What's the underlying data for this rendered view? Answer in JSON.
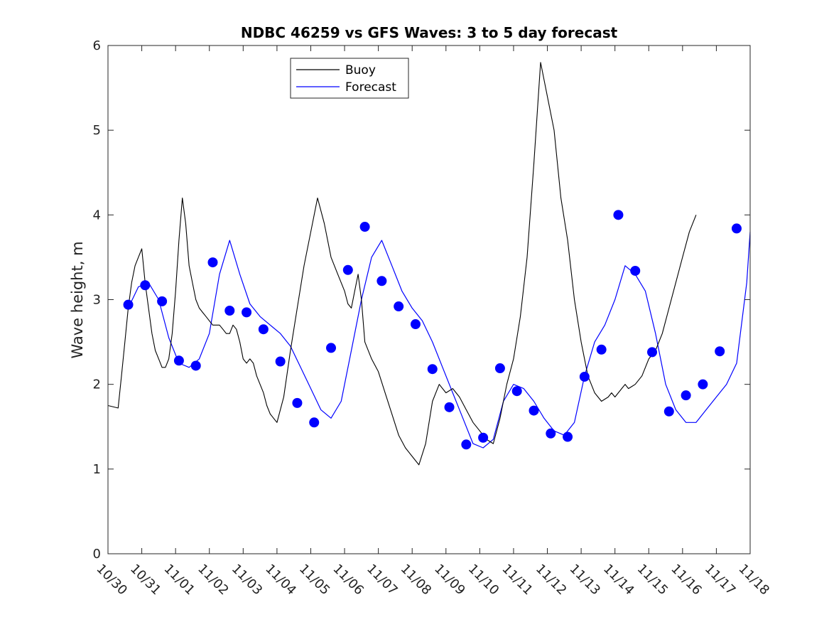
{
  "chart_data": {
    "type": "line",
    "title": "NDBC 46259 vs GFS Waves: 3 to 5 day forecast",
    "xlabel": "",
    "ylabel": "Wave height, m",
    "ylim": [
      0,
      6
    ],
    "yticks": [
      0,
      1,
      2,
      3,
      4,
      5,
      6
    ],
    "xlim": [
      0,
      19
    ],
    "x_tick_labels": [
      "10/30",
      "10/31",
      "11/01",
      "11/02",
      "11/03",
      "11/04",
      "11/05",
      "11/06",
      "11/07",
      "11/08",
      "11/09",
      "11/10",
      "11/11",
      "11/12",
      "11/13",
      "11/14",
      "11/15",
      "11/16",
      "11/17",
      "11/18"
    ],
    "x_units": "days since 10/30 00:00",
    "legend": {
      "position": "top-center",
      "entries": [
        {
          "name": "Buoy",
          "color": "#000000"
        },
        {
          "name": "Forecast",
          "color": "#0000ff"
        }
      ]
    },
    "grid": false,
    "buoy_series": {
      "name": "Buoy",
      "color": "#000000",
      "x": [
        0.0,
        0.3,
        0.4,
        0.5,
        0.6,
        0.7,
        0.8,
        0.9,
        1.0,
        1.1,
        1.2,
        1.3,
        1.4,
        1.5,
        1.6,
        1.7,
        1.8,
        1.9,
        2.0,
        2.1,
        2.2,
        2.3,
        2.4,
        2.5,
        2.6,
        2.7,
        2.8,
        2.9,
        3.0,
        3.1,
        3.2,
        3.3,
        3.4,
        3.5,
        3.6,
        3.7,
        3.8,
        3.9,
        4.0,
        4.1,
        4.2,
        4.3,
        4.4,
        4.5,
        4.6,
        4.7,
        4.8,
        4.9,
        5.0,
        5.2,
        5.4,
        5.6,
        5.8,
        6.0,
        6.2,
        6.4,
        6.6,
        6.8,
        7.0,
        7.1,
        7.2,
        7.3,
        7.4,
        7.5,
        7.6,
        7.8,
        8.0,
        8.2,
        8.4,
        8.6,
        8.8,
        9.0,
        9.2,
        9.4,
        9.6,
        9.8,
        10.0,
        10.2,
        10.4,
        10.6,
        10.8,
        11.0,
        11.2,
        11.4,
        11.6,
        11.8,
        12.0,
        12.2,
        12.4,
        12.6,
        12.8,
        13.0,
        13.2,
        13.4,
        13.6,
        13.8,
        14.0,
        14.2,
        14.4,
        14.6,
        14.8,
        14.9,
        15.0,
        15.1,
        15.2,
        15.3,
        15.4,
        15.6,
        15.8,
        16.0,
        16.2,
        16.4,
        16.6,
        16.8,
        17.0,
        17.2,
        17.4
      ],
      "values": [
        1.75,
        1.72,
        2.1,
        2.5,
        2.9,
        3.2,
        3.4,
        3.5,
        3.6,
        3.2,
        2.9,
        2.6,
        2.4,
        2.3,
        2.2,
        2.2,
        2.3,
        2.6,
        3.1,
        3.7,
        4.2,
        3.9,
        3.4,
        3.2,
        3.0,
        2.9,
        2.85,
        2.8,
        2.75,
        2.7,
        2.7,
        2.7,
        2.65,
        2.6,
        2.6,
        2.7,
        2.65,
        2.5,
        2.3,
        2.25,
        2.3,
        2.25,
        2.1,
        2.0,
        1.9,
        1.75,
        1.65,
        1.6,
        1.55,
        1.85,
        2.4,
        2.9,
        3.4,
        3.8,
        4.2,
        3.9,
        3.5,
        3.3,
        3.1,
        2.95,
        2.9,
        3.1,
        3.3,
        3.0,
        2.5,
        2.3,
        2.15,
        1.9,
        1.65,
        1.4,
        1.25,
        1.15,
        1.05,
        1.3,
        1.8,
        2.0,
        1.9,
        1.95,
        1.85,
        1.7,
        1.55,
        1.45,
        1.35,
        1.3,
        1.6,
        2.0,
        2.3,
        2.8,
        3.5,
        4.6,
        5.8,
        5.4,
        5.0,
        4.2,
        3.7,
        3.0,
        2.5,
        2.1,
        1.9,
        1.8,
        1.85,
        1.9,
        1.85,
        1.9,
        1.95,
        2.0,
        1.95,
        2.0,
        2.1,
        2.3,
        2.4,
        2.6,
        2.9,
        3.2,
        3.5,
        3.8,
        4.0
      ]
    },
    "forecast_series": [
      {
        "name": "Forecast",
        "color": "#0000ff",
        "x": [
          0.6,
          0.9,
          1.2,
          1.5,
          1.8,
          2.1,
          2.4,
          2.7,
          3.0,
          3.3,
          3.6,
          3.9,
          4.2,
          4.5,
          4.8,
          5.1,
          5.4,
          5.7,
          6.0,
          6.3,
          6.6,
          6.9,
          7.2,
          7.5,
          7.8,
          8.1,
          8.4,
          8.7,
          9.0,
          9.3,
          9.6,
          9.9,
          10.2,
          10.5,
          10.8,
          11.1,
          11.4,
          11.7,
          12.0,
          12.3,
          12.6,
          12.9,
          13.2,
          13.5,
          13.8,
          14.1,
          14.4,
          14.7,
          15.0,
          15.3,
          15.6,
          15.9,
          16.2,
          16.5,
          16.8,
          17.1,
          17.4,
          17.7,
          18.0,
          18.3,
          18.6,
          18.9,
          19.0
        ],
        "values": [
          2.9,
          3.15,
          3.2,
          3.0,
          2.55,
          2.25,
          2.2,
          2.3,
          2.6,
          3.3,
          3.7,
          3.3,
          2.95,
          2.8,
          2.7,
          2.6,
          2.45,
          2.2,
          1.95,
          1.7,
          1.6,
          1.8,
          2.4,
          3.0,
          3.5,
          3.7,
          3.4,
          3.1,
          2.9,
          2.75,
          2.5,
          2.2,
          1.9,
          1.6,
          1.3,
          1.25,
          1.35,
          1.8,
          2.0,
          1.95,
          1.8,
          1.6,
          1.45,
          1.4,
          1.55,
          2.1,
          2.5,
          2.7,
          3.0,
          3.4,
          3.3,
          3.1,
          2.6,
          2.0,
          1.7,
          1.55,
          1.55,
          1.7,
          1.85,
          2.0,
          2.25,
          3.2,
          3.8
        ]
      }
    ],
    "forecast_markers": {
      "name": "Forecast",
      "color": "#0000ff",
      "x": [
        0.6,
        1.1,
        1.6,
        2.1,
        2.6,
        3.1,
        3.6,
        4.1,
        4.6,
        5.1,
        5.6,
        6.1,
        6.6,
        7.1,
        7.6,
        8.1,
        8.6,
        9.1,
        9.6,
        10.1,
        10.6,
        11.1,
        11.6,
        12.1,
        12.6,
        13.1,
        13.6,
        14.1,
        14.6,
        15.1,
        15.6,
        16.1,
        16.6,
        17.1,
        17.6,
        18.1,
        18.6
      ],
      "values": [
        2.94,
        3.17,
        2.98,
        2.28,
        2.22,
        3.44,
        2.87,
        2.85,
        2.65,
        2.27,
        1.78,
        1.55,
        2.43,
        3.35,
        3.86,
        3.22,
        2.92,
        2.71,
        2.18,
        1.73,
        1.29,
        1.37,
        2.19,
        1.92,
        1.69,
        1.42,
        1.38,
        2.09,
        2.41,
        4.0,
        3.34,
        2.38,
        1.68,
        1.87,
        2.0,
        2.39,
        3.84
      ]
    }
  }
}
